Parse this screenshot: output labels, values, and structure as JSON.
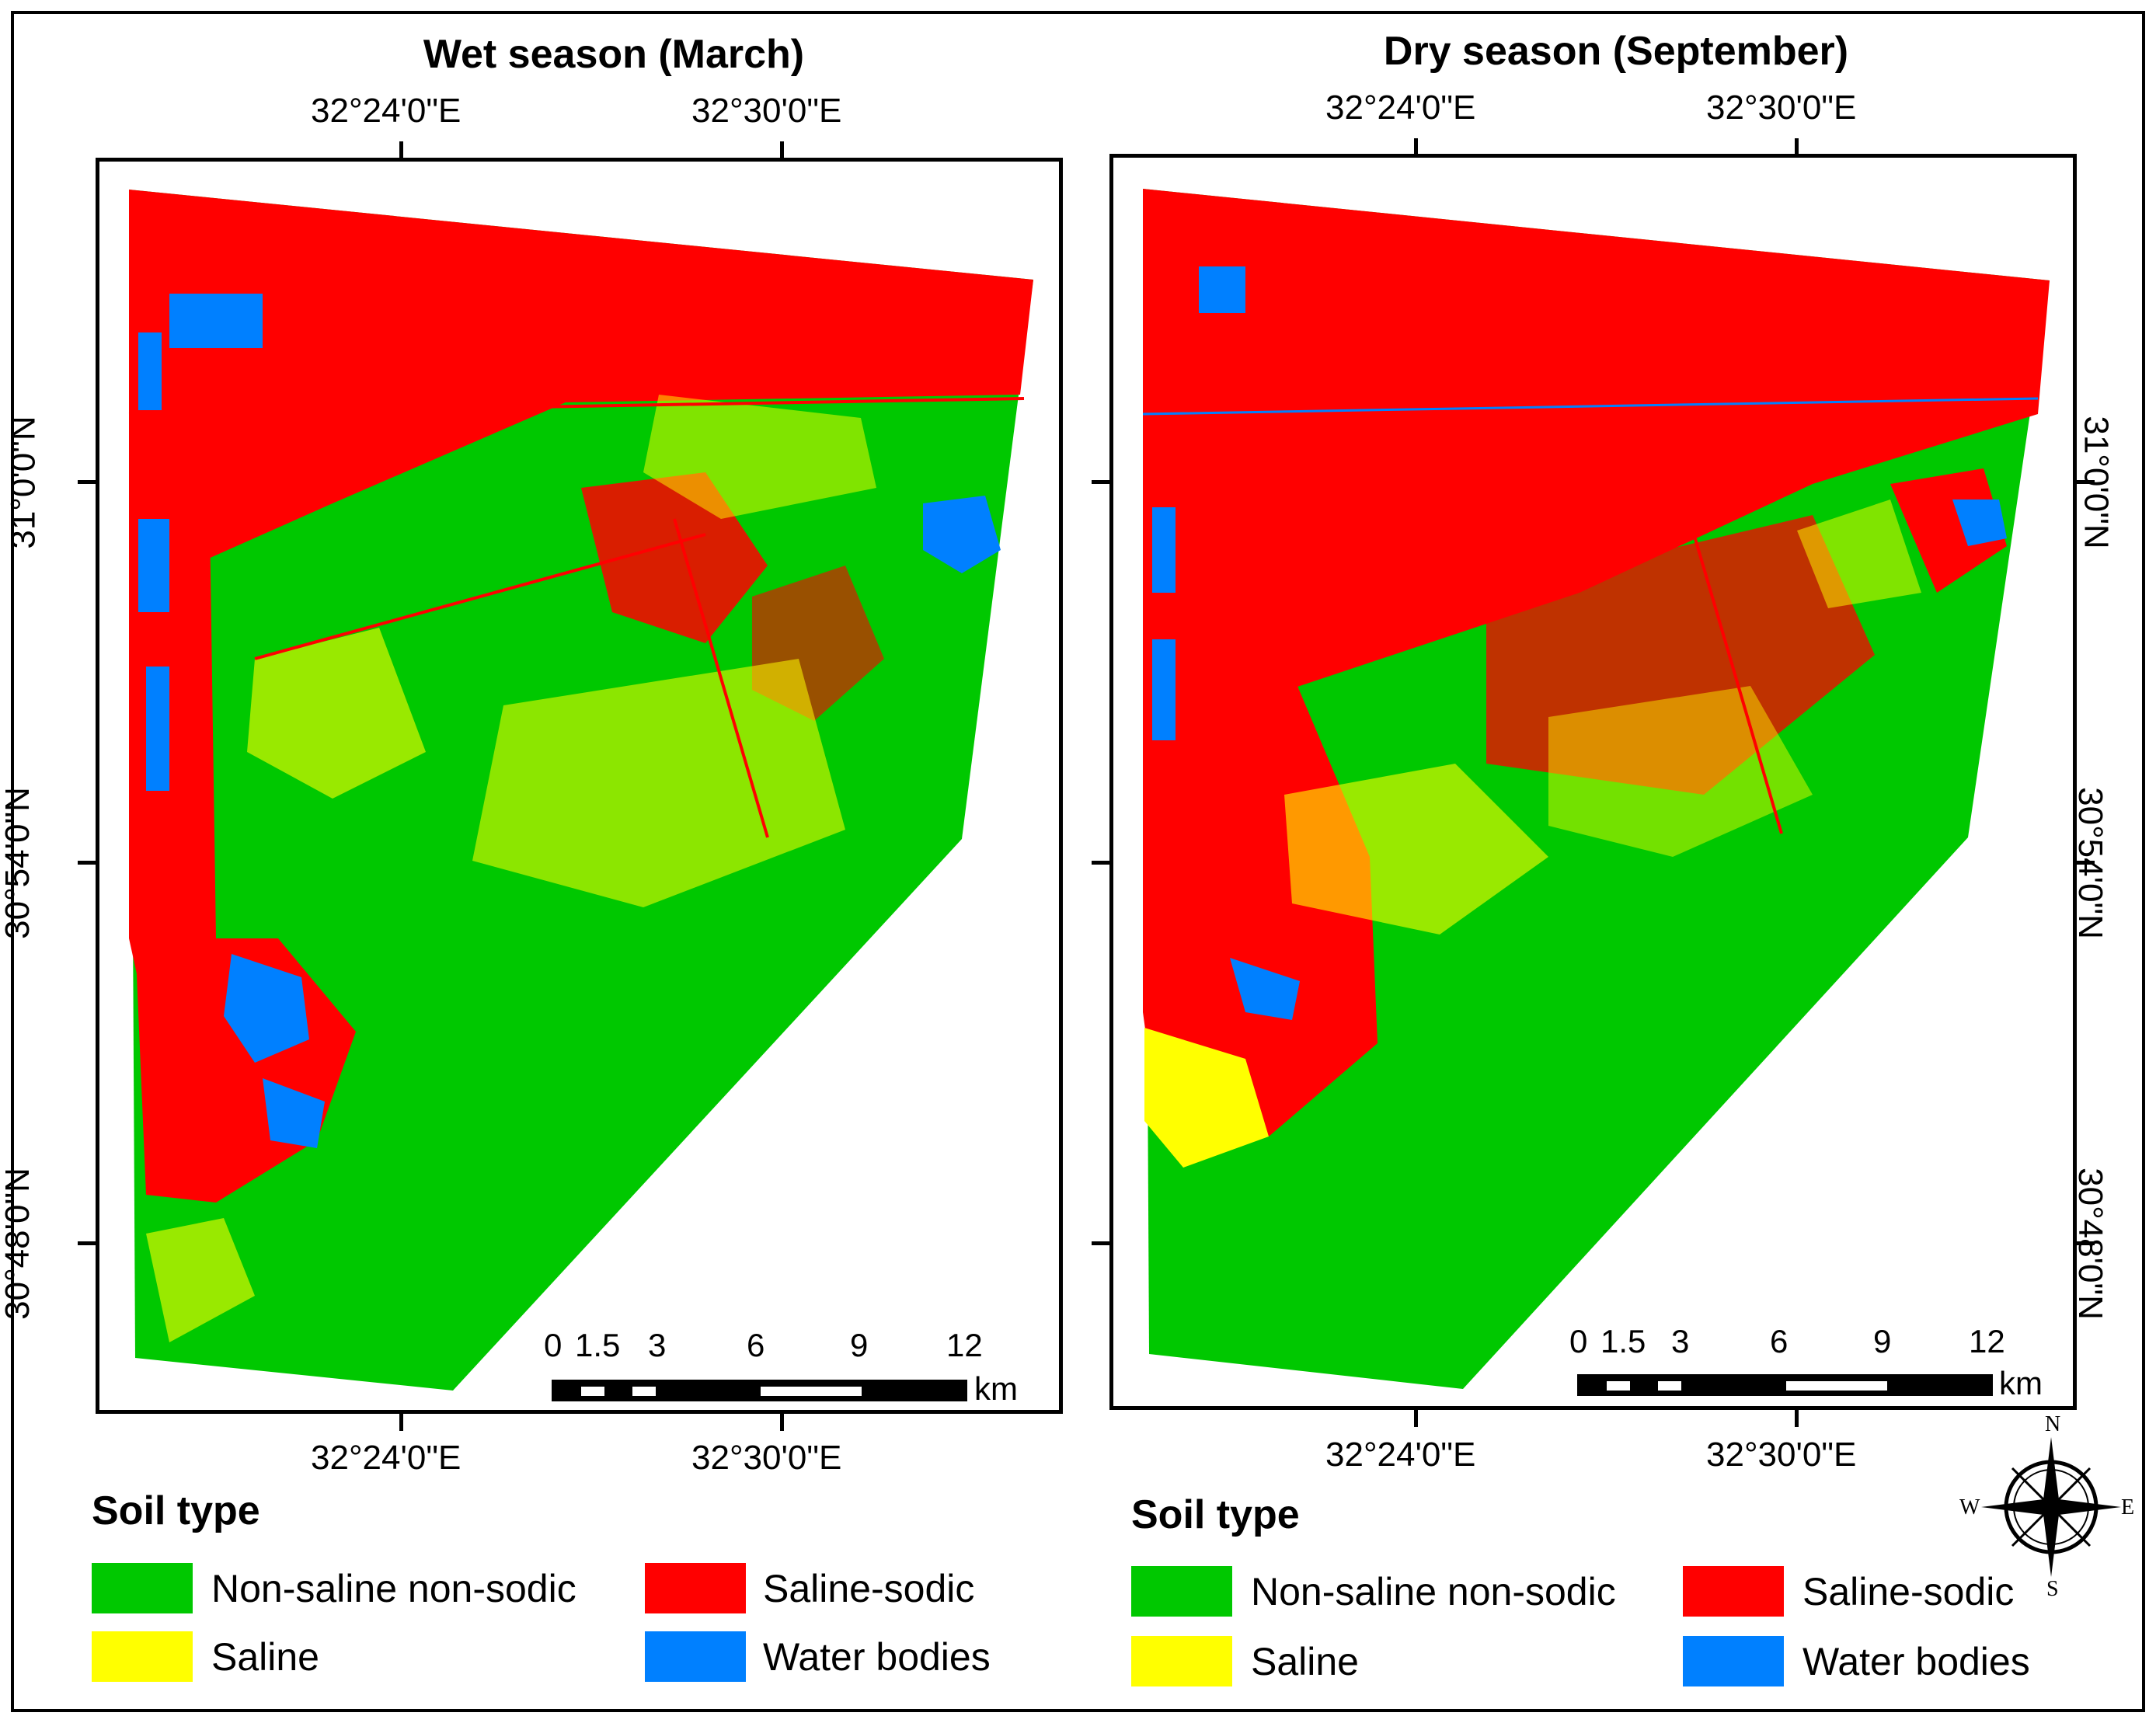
{
  "panels": [
    {
      "title": "Wet season (March)",
      "top_ticks": [
        "32°24'0\"E",
        "32°30'0\"E"
      ],
      "bottom_ticks": [
        "32°24'0\"E",
        "32°30'0\"E"
      ],
      "left_ticks": [
        "31°0'0\"N",
        "30°54'0\"N",
        "30°48'0\"N"
      ],
      "scale_numbers": [
        "0",
        "1.5",
        "3",
        "6",
        "9",
        "12"
      ],
      "scale_unit": "km"
    },
    {
      "title": "Dry season (September)",
      "top_ticks": [
        "32°24'0\"E",
        "32°30'0\"E"
      ],
      "bottom_ticks": [
        "32°24'0\"E",
        "32°30'0\"E"
      ],
      "right_ticks": [
        "31°0'0\"N",
        "30°54'0\"N",
        "30°48'0\"N"
      ],
      "scale_numbers": [
        "0",
        "1.5",
        "3",
        "6",
        "9",
        "12"
      ],
      "scale_unit": "km"
    }
  ],
  "legends": [
    {
      "title": "Soil type",
      "items": [
        {
          "label": "Non-saline non-sodic",
          "color": "#00c800"
        },
        {
          "label": "Saline-sodic",
          "color": "#ff0000"
        },
        {
          "label": "Saline",
          "color": "#ffff00"
        },
        {
          "label": "Water bodies",
          "color": "#0080ff"
        }
      ]
    },
    {
      "title": "Soil type",
      "items": [
        {
          "label": "Non-saline non-sodic",
          "color": "#00c800"
        },
        {
          "label": "Saline-sodic",
          "color": "#ff0000"
        },
        {
          "label": "Saline",
          "color": "#ffff00"
        },
        {
          "label": "Water bodies",
          "color": "#0080ff"
        }
      ]
    }
  ],
  "north_arrow": {
    "n": "N",
    "s": "S",
    "e": "E",
    "w": "W",
    "icon": "compass-rose-icon"
  },
  "colors": {
    "green": "#00c800",
    "red": "#ff0000",
    "yellow": "#ffff00",
    "blue": "#0080ff"
  }
}
